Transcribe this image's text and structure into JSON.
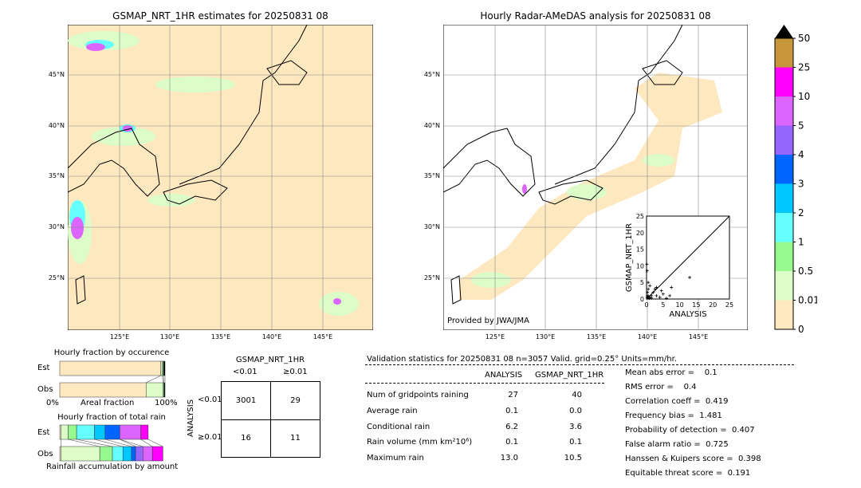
{
  "left_map": {
    "title": "GSMAP_NRT_1HR estimates for 20250831 08",
    "lon_ticks": [
      "125°E",
      "130°E",
      "135°E",
      "140°E",
      "145°E"
    ],
    "lat_ticks": [
      "45°N",
      "40°N",
      "35°N",
      "30°N",
      "25°N"
    ]
  },
  "right_map": {
    "title": "Hourly Radar-AMeDAS analysis for 20250831 08",
    "lon_ticks": [
      "125°E",
      "130°E",
      "135°E",
      "140°E",
      "145°E"
    ],
    "lat_ticks": [
      "45°N",
      "40°N",
      "35°N",
      "30°N",
      "25°N"
    ],
    "credit": "Provided by JWA/JMA"
  },
  "scatter": {
    "xlabel": "ANALYSIS",
    "ylabel": "GSMAP_NRT_1HR",
    "ticks": [
      "0",
      "5",
      "10",
      "15",
      "20",
      "25"
    ],
    "xlim": [
      0,
      25
    ],
    "ylim": [
      0,
      25
    ],
    "points": [
      [
        0.2,
        0.3
      ],
      [
        0.5,
        1
      ],
      [
        1,
        0.5
      ],
      [
        0.3,
        2
      ],
      [
        0.5,
        3
      ],
      [
        1.5,
        1
      ],
      [
        2,
        2
      ],
      [
        3,
        1
      ],
      [
        4,
        0.5
      ],
      [
        5,
        1.5
      ],
      [
        6,
        0.2
      ],
      [
        7,
        1
      ],
      [
        7.5,
        3.5
      ],
      [
        13,
        6.5
      ],
      [
        0.2,
        8.5
      ],
      [
        0.1,
        10.5
      ],
      [
        0.5,
        5
      ],
      [
        1,
        4
      ],
      [
        2.5,
        3
      ],
      [
        0.8,
        0.2
      ],
      [
        3,
        3.5
      ],
      [
        4.5,
        2.5
      ],
      [
        1.5,
        0.3
      ],
      [
        0.3,
        0.8
      ]
    ]
  },
  "colorbar": {
    "labels": [
      "0",
      "0.01",
      "0.5",
      "1",
      "2",
      "3",
      "4",
      "5",
      "10",
      "25",
      "50"
    ],
    "colors": [
      "#fee8c0",
      "#dcfcc8",
      "#98f890",
      "#66ffff",
      "#00c8ff",
      "#0064ff",
      "#9664ff",
      "#dc64ff",
      "#ff00ff",
      "#c8963c"
    ],
    "over_color": "#000000"
  },
  "occurrence": {
    "title": "Hourly fraction by occurence",
    "rows": [
      "Est",
      "Obs"
    ],
    "xlabel": "Areal fraction",
    "x_left": "0%",
    "x_right": "100%",
    "est": [
      0.96,
      0.015,
      0.01,
      0.015
    ],
    "obs": [
      0.82,
      0.16,
      0.01,
      0.01
    ]
  },
  "total_rain": {
    "title": "Hourly fraction of total rain",
    "rows": [
      "Est",
      "Obs"
    ],
    "xlabel": "Rainfall accumulation by amount",
    "est": [
      0.01,
      0.07,
      0.08,
      0.17,
      0.1,
      0.14,
      0.0,
      0.2,
      0.07
    ],
    "obs": [
      0.01,
      0.37,
      0.12,
      0.1,
      0.08,
      0.04,
      0.07,
      0.09,
      0.1
    ]
  },
  "contingency": {
    "title": "GSMAP_NRT_1HR",
    "col_labels": [
      "<0.01",
      "≥0.01"
    ],
    "row_title": "ANALYSIS",
    "row_labels": [
      "<0.01",
      "≥0.01"
    ],
    "cells": [
      [
        "3001",
        "29"
      ],
      [
        "16",
        "11"
      ]
    ]
  },
  "stats": {
    "header": "Validation statistics for 20250831 08  n=3057 Valid. grid=0.25° Units=mm/hr.",
    "col_headers": [
      "ANALYSIS",
      "GSMAP_NRT_1HR"
    ],
    "rows": [
      {
        "label": "Num of gridpoints raining",
        "a": "27",
        "g": "40"
      },
      {
        "label": "Average rain",
        "a": "0.1",
        "g": "0.0"
      },
      {
        "label": "Conditional rain",
        "a": "6.2",
        "g": "3.6"
      },
      {
        "label": "Rain volume (mm km²10⁶)",
        "a": "0.1",
        "g": "0.1"
      },
      {
        "label": "Maximum rain",
        "a": "13.0",
        "g": "10.5"
      }
    ],
    "scores": [
      "Mean abs error =    0.1",
      "RMS error =    0.4",
      "Correlation coeff =  0.419",
      "Frequency bias =  1.481",
      "Probability of detection =  0.407",
      "False alarm ratio =  0.725",
      "Hanssen & Kuipers score =  0.398",
      "Equitable threat score =  0.191"
    ]
  }
}
